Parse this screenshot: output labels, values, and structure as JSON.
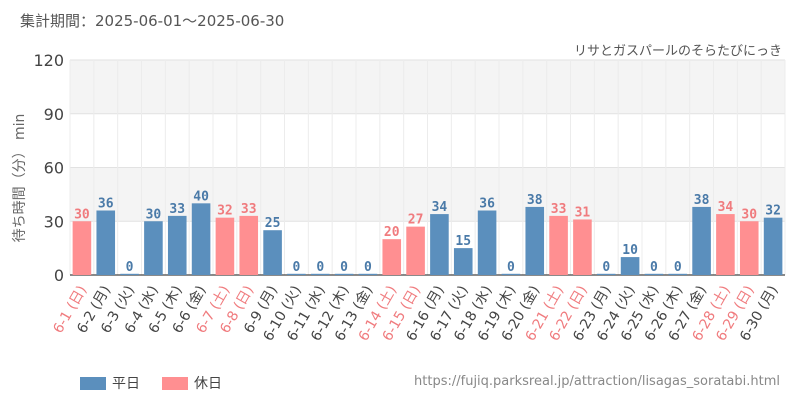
{
  "header": {
    "period": "集計期間：2025-06-01～2025-06-30",
    "attraction": "リサとガスパールのそらたびにっき"
  },
  "legend": {
    "weekday": "平日",
    "holiday": "休日"
  },
  "source": "https://fujiq.parksreal.jp/attraction/lisagas_soratabi.html",
  "colors": {
    "weekday": "#5b8fbd",
    "holiday": "#ff8f91",
    "holiday_label": "#f07b7e",
    "weekday_label": "#4a7aa8"
  },
  "chart_data": {
    "type": "bar",
    "title": "",
    "ylabel": "待ち時間（分） min",
    "ylim": [
      0,
      120
    ],
    "yticks": [
      0,
      30,
      60,
      90,
      120
    ],
    "grid": true,
    "legend_position": "bottom-left",
    "categories": [
      "6-1 (日)",
      "6-2 (月)",
      "6-3 (火)",
      "6-4 (水)",
      "6-5 (木)",
      "6-6 (金)",
      "6-7 (土)",
      "6-8 (日)",
      "6-9 (月)",
      "6-10 (火)",
      "6-11 (水)",
      "6-12 (木)",
      "6-13 (金)",
      "6-14 (土)",
      "6-15 (日)",
      "6-16 (月)",
      "6-17 (火)",
      "6-18 (水)",
      "6-19 (木)",
      "6-20 (金)",
      "6-21 (土)",
      "6-22 (日)",
      "6-23 (月)",
      "6-24 (火)",
      "6-25 (水)",
      "6-26 (木)",
      "6-27 (金)",
      "6-28 (土)",
      "6-29 (日)",
      "6-30 (月)"
    ],
    "values": [
      30,
      36,
      0,
      30,
      33,
      40,
      32,
      33,
      25,
      0,
      0,
      0,
      0,
      20,
      27,
      34,
      15,
      36,
      0,
      38,
      33,
      31,
      0,
      10,
      0,
      0,
      38,
      34,
      30,
      32
    ],
    "holiday": [
      true,
      false,
      false,
      false,
      false,
      false,
      true,
      true,
      false,
      false,
      false,
      false,
      false,
      true,
      true,
      false,
      false,
      false,
      false,
      false,
      true,
      true,
      false,
      false,
      false,
      false,
      false,
      true,
      true,
      false
    ]
  }
}
